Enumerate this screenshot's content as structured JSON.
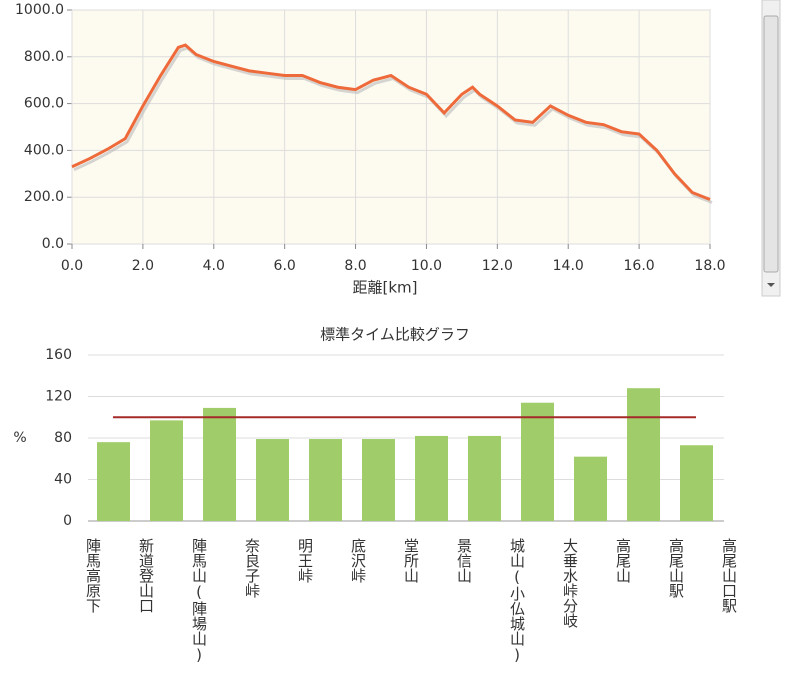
{
  "chart_data": [
    {
      "type": "line",
      "xlabel": "距離[km]",
      "x": [
        0,
        0.5,
        1.0,
        1.5,
        2.0,
        2.5,
        3.0,
        3.2,
        3.5,
        4.0,
        4.5,
        5.0,
        5.5,
        6.0,
        6.5,
        7.0,
        7.5,
        8.0,
        8.5,
        9.0,
        9.5,
        10.0,
        10.5,
        11.0,
        11.3,
        11.5,
        12.0,
        12.5,
        13.0,
        13.5,
        14.0,
        14.5,
        15.0,
        15.5,
        16.0,
        16.5,
        17.0,
        17.5,
        18.0
      ],
      "series": [
        {
          "color": "#ee6a3a",
          "values": [
            330,
            365,
            405,
            450,
            590,
            720,
            840,
            850,
            810,
            780,
            760,
            740,
            730,
            720,
            720,
            690,
            670,
            660,
            700,
            720,
            670,
            640,
            560,
            640,
            670,
            640,
            590,
            530,
            520,
            590,
            550,
            520,
            510,
            480,
            470,
            400,
            300,
            220,
            190
          ]
        }
      ],
      "xlim": [
        0,
        18
      ],
      "ylim": [
        0,
        1000
      ],
      "xticks": [
        {
          "value": 0,
          "label": "0.0"
        },
        {
          "value": 2,
          "label": "2.0"
        },
        {
          "value": 4,
          "label": "4.0"
        },
        {
          "value": 6,
          "label": "6.0"
        },
        {
          "value": 8,
          "label": "8.0"
        },
        {
          "value": 10,
          "label": "10.0"
        },
        {
          "value": 12,
          "label": "12.0"
        },
        {
          "value": 14,
          "label": "14.0"
        },
        {
          "value": 16,
          "label": "16.0"
        },
        {
          "value": 18,
          "label": "18.0"
        }
      ],
      "yticks": [
        {
          "value": 0,
          "label": "0.0"
        },
        {
          "value": 200,
          "label": "200.0"
        },
        {
          "value": 400,
          "label": "400.0"
        },
        {
          "value": 600,
          "label": "600.0"
        },
        {
          "value": 800,
          "label": "800.0"
        },
        {
          "value": 1000,
          "label": "1000.0"
        }
      ],
      "grid": true
    },
    {
      "type": "bar",
      "title": "標準タイム比較グラフ",
      "ylabel": "%",
      "categories": [
        "陣馬高原下",
        "新道登山口",
        "陣馬山(陣場山)",
        "奈良子峠",
        "明王峠",
        "底沢峠",
        "堂所山",
        "景信山",
        "城山(小仏城山)",
        "大垂水峠分岐",
        "高尾山",
        "高尾山駅",
        "高尾山口駅"
      ],
      "values": [
        76,
        97,
        109,
        79,
        79,
        79,
        82,
        82,
        114,
        62,
        128,
        73,
        null
      ],
      "color": "#a0cc6a",
      "reference_line": 100,
      "reference_color": "#a52a2a",
      "ylim": [
        0,
        160
      ],
      "yticks": [
        0,
        40,
        80,
        120,
        160
      ],
      "grid": true
    }
  ]
}
